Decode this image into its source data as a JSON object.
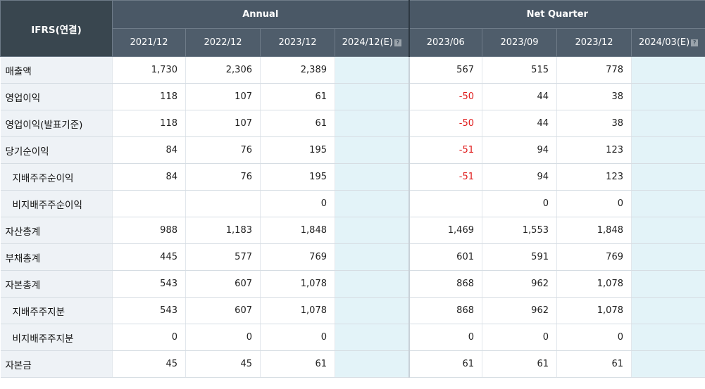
{
  "header": {
    "corner": "IFRS(연결)",
    "groups": {
      "annual": "Annual",
      "quarter": "Net Quarter"
    },
    "periods": [
      "2021/12",
      "2022/12",
      "2023/12",
      "2024/12(E)",
      "2023/06",
      "2023/09",
      "2023/12",
      "2024/03(E)"
    ],
    "help_glyph": "?"
  },
  "rows": [
    {
      "label": "매출액",
      "values": [
        "1,730",
        "2,306",
        "2,389",
        "",
        "567",
        "515",
        "778",
        ""
      ]
    },
    {
      "label": "영업이익",
      "values": [
        "118",
        "107",
        "61",
        "",
        "-50",
        "44",
        "38",
        ""
      ]
    },
    {
      "label": "영업이익(발표기준)",
      "values": [
        "118",
        "107",
        "61",
        "",
        "-50",
        "44",
        "38",
        ""
      ]
    },
    {
      "label": "당기순이익",
      "values": [
        "84",
        "76",
        "195",
        "",
        "-51",
        "94",
        "123",
        ""
      ]
    },
    {
      "label": "지배주주순이익",
      "values": [
        "84",
        "76",
        "195",
        "",
        "-51",
        "94",
        "123",
        ""
      ]
    },
    {
      "label": "비지배주주순이익",
      "values": [
        "",
        "",
        "0",
        "",
        "",
        "0",
        "0",
        ""
      ]
    },
    {
      "label": "자산총계",
      "values": [
        "988",
        "1,183",
        "1,848",
        "",
        "1,469",
        "1,553",
        "1,848",
        ""
      ]
    },
    {
      "label": "부채총계",
      "values": [
        "445",
        "577",
        "769",
        "",
        "601",
        "591",
        "769",
        ""
      ]
    },
    {
      "label": "자본총계",
      "values": [
        "543",
        "607",
        "1,078",
        "",
        "868",
        "962",
        "1,078",
        ""
      ]
    },
    {
      "label": "지배주주지분",
      "values": [
        "543",
        "607",
        "1,078",
        "",
        "868",
        "962",
        "1,078",
        ""
      ]
    },
    {
      "label": "비지배주주지분",
      "values": [
        "0",
        "0",
        "0",
        "",
        "0",
        "0",
        "0",
        ""
      ]
    },
    {
      "label": "자본금",
      "values": [
        "45",
        "45",
        "61",
        "",
        "61",
        "61",
        "61",
        ""
      ]
    }
  ],
  "colors": {
    "header_bg": "#4a5866",
    "label_bg": "#eef2f6",
    "estimate_bg": "#e3f3f8",
    "negative": "#e01b1b"
  }
}
